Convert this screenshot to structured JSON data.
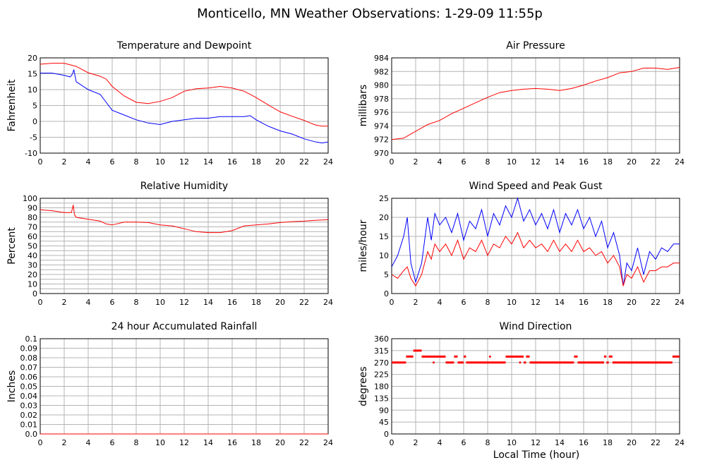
{
  "title": "Monticello, MN Weather Observations: 1-29-09 11:55p",
  "shared_xlabel": "Local Time (hour)",
  "colors": {
    "red": "#ff0000",
    "blue": "#0000ff",
    "grid": "#b4b4b4",
    "frame": "#000000"
  },
  "chart_data": [
    {
      "id": "temp",
      "type": "line",
      "title": "Temperature and Dewpoint",
      "xlabel": "",
      "ylabel": "Fahrenheit",
      "xlim": [
        0,
        24
      ],
      "ylim": [
        -10,
        20
      ],
      "xticks": [
        0,
        2,
        4,
        6,
        8,
        10,
        12,
        14,
        16,
        18,
        20,
        22,
        24
      ],
      "yticks": [
        -10,
        -5,
        0,
        5,
        10,
        15,
        20
      ],
      "grid": true,
      "series": [
        {
          "color": "#ff0000",
          "x": [
            0,
            1,
            2,
            2.5,
            3,
            4,
            5,
            5.5,
            6,
            7,
            8,
            9,
            10,
            11,
            12,
            13,
            14,
            15,
            16,
            17,
            18,
            19,
            20,
            21,
            22,
            22.5,
            23,
            23.5,
            24
          ],
          "y": [
            18,
            18.3,
            18.3,
            17.8,
            17.3,
            15.3,
            14.2,
            13.3,
            11,
            8,
            6,
            5.6,
            6.3,
            7.5,
            9.5,
            10.3,
            10.5,
            11,
            10.5,
            9.5,
            7.5,
            5.2,
            3,
            1.6,
            0.3,
            -0.5,
            -1.2,
            -1.5,
            -1.5
          ]
        },
        {
          "color": "#0000ff",
          "x": [
            0,
            1,
            2,
            2.5,
            2.7,
            2.8,
            3,
            4,
            5,
            5.5,
            6,
            7,
            8,
            9,
            10,
            11,
            12,
            13,
            14,
            15,
            16,
            17,
            17.5,
            18,
            19,
            20,
            21,
            22,
            23,
            23.5,
            24
          ],
          "y": [
            15.2,
            15.2,
            14.5,
            14,
            15,
            16.3,
            12.5,
            10,
            8.5,
            6,
            3.5,
            2,
            0.5,
            -0.5,
            -1,
            0,
            0.5,
            1,
            1,
            1.5,
            1.5,
            1.5,
            1.8,
            0.5,
            -1.5,
            -3,
            -4,
            -5.5,
            -6.5,
            -6.8,
            -6.5
          ]
        }
      ]
    },
    {
      "id": "pressure",
      "type": "line",
      "title": "Air Pressure",
      "xlabel": "",
      "ylabel": "millibars",
      "xlim": [
        0,
        24
      ],
      "ylim": [
        970,
        984
      ],
      "xticks": [
        0,
        2,
        4,
        6,
        8,
        10,
        12,
        14,
        16,
        18,
        20,
        22,
        24
      ],
      "yticks": [
        970,
        972,
        974,
        976,
        978,
        980,
        982,
        984
      ],
      "grid": true,
      "series": [
        {
          "color": "#ff0000",
          "x": [
            0,
            1,
            2,
            3,
            4,
            5,
            6,
            7,
            8,
            9,
            10,
            11,
            12,
            13,
            14,
            15,
            16,
            17,
            18,
            19,
            20,
            21,
            22,
            23,
            24
          ],
          "y": [
            972,
            972.2,
            973.2,
            974.2,
            974.8,
            975.8,
            976.6,
            977.4,
            978.2,
            978.9,
            979.2,
            979.4,
            979.5,
            979.4,
            979.2,
            979.5,
            980,
            980.6,
            981.1,
            981.8,
            982,
            982.5,
            982.5,
            982.3,
            982.6
          ]
        }
      ]
    },
    {
      "id": "humidity",
      "type": "line",
      "title": "Relative Humidity",
      "xlabel": "",
      "ylabel": "Percent",
      "xlim": [
        0,
        24
      ],
      "ylim": [
        0,
        100
      ],
      "xticks": [
        0,
        2,
        4,
        6,
        8,
        10,
        12,
        14,
        16,
        18,
        20,
        22,
        24
      ],
      "yticks": [
        0,
        5,
        10,
        15,
        20,
        25,
        30,
        35,
        40,
        45,
        50,
        55,
        60,
        65,
        70,
        75,
        80,
        85,
        90,
        95,
        100
      ],
      "ytick_labels": [
        "0",
        "10",
        "20",
        "30",
        "40",
        "50",
        "60",
        "70",
        "80",
        "90",
        "100"
      ],
      "grid": true,
      "series": [
        {
          "color": "#ff0000",
          "x": [
            0,
            1,
            2,
            2.6,
            2.75,
            2.85,
            3,
            4,
            5,
            5.5,
            6,
            7,
            8,
            9,
            10,
            11,
            12,
            13,
            14,
            15,
            16,
            17,
            18,
            19,
            20,
            21,
            22,
            23,
            24
          ],
          "y": [
            88,
            87,
            85,
            85,
            93,
            83,
            80,
            78,
            76,
            73,
            72,
            75,
            75,
            74.5,
            72,
            71,
            68,
            65,
            64,
            64,
            66,
            71,
            72,
            73,
            74.5,
            75.5,
            76,
            77,
            77.5
          ]
        }
      ]
    },
    {
      "id": "wind",
      "type": "line",
      "title": "Wind Speed and Peak Gust",
      "xlabel": "",
      "ylabel": "miles/hour",
      "xlim": [
        0,
        24
      ],
      "ylim": [
        0,
        25
      ],
      "xticks": [
        0,
        2,
        4,
        6,
        8,
        10,
        12,
        14,
        16,
        18,
        20,
        22,
        24
      ],
      "yticks": [
        0,
        5,
        10,
        15,
        20,
        25
      ],
      "grid": true,
      "series": [
        {
          "color": "#0000ff",
          "x": [
            0,
            0.5,
            1,
            1.3,
            1.6,
            2,
            2.5,
            3,
            3.3,
            3.6,
            4,
            4.5,
            5,
            5.5,
            6,
            6.5,
            7,
            7.5,
            8,
            8.5,
            9,
            9.5,
            10,
            10.5,
            11,
            11.5,
            12,
            12.5,
            13,
            13.5,
            14,
            14.5,
            15,
            15.5,
            16,
            16.5,
            17,
            17.5,
            18,
            18.5,
            19,
            19.3,
            19.6,
            20,
            20.5,
            21,
            21.5,
            22,
            22.5,
            23,
            23.5,
            24
          ],
          "y": [
            7,
            10,
            15,
            20,
            8,
            3,
            8,
            20,
            14,
            21,
            18,
            20,
            16,
            21,
            14,
            19,
            17,
            22,
            15,
            21,
            18,
            23,
            20,
            25,
            19,
            22,
            18,
            21,
            17,
            22,
            16,
            21,
            18,
            22,
            17,
            20,
            15,
            19,
            12,
            16,
            10,
            2,
            8,
            6,
            12,
            5,
            11,
            9,
            12,
            11,
            13,
            13
          ]
        },
        {
          "color": "#ff0000",
          "x": [
            0,
            0.5,
            1,
            1.3,
            1.6,
            2,
            2.5,
            3,
            3.3,
            3.6,
            4,
            4.5,
            5,
            5.5,
            6,
            6.5,
            7,
            7.5,
            8,
            8.5,
            9,
            9.5,
            10,
            10.5,
            11,
            11.5,
            12,
            12.5,
            13,
            13.5,
            14,
            14.5,
            15,
            15.5,
            16,
            16.5,
            17,
            17.5,
            18,
            18.5,
            19,
            19.3,
            19.6,
            20,
            20.5,
            21,
            21.5,
            22,
            22.5,
            23,
            23.5,
            24
          ],
          "y": [
            5,
            4,
            6,
            7,
            4,
            2,
            5,
            11,
            9,
            13,
            11,
            13,
            10,
            14,
            9,
            12,
            11,
            14,
            10,
            13,
            12,
            15,
            13,
            16,
            12,
            14,
            12,
            13,
            11,
            14,
            11,
            13,
            11,
            14,
            11,
            12,
            10,
            11,
            8,
            10,
            7,
            2,
            5,
            4,
            7,
            3,
            6,
            6,
            7,
            7,
            8,
            8
          ]
        }
      ]
    },
    {
      "id": "rain",
      "type": "line",
      "title": "24 hour Accumulated Rainfall",
      "xlabel": "",
      "ylabel": "Inches",
      "xlim": [
        0,
        24
      ],
      "ylim": [
        0,
        0.1
      ],
      "xticks": [
        0,
        2,
        4,
        6,
        8,
        10,
        12,
        14,
        16,
        18,
        20,
        22,
        24
      ],
      "yticks": [
        0,
        0.01,
        0.02,
        0.03,
        0.04,
        0.05,
        0.06,
        0.07,
        0.08,
        0.09,
        0.1
      ],
      "ytick_labels": [
        "0.0",
        "0.01",
        "0.02",
        "0.03",
        "0.04",
        "0.05",
        "0.06",
        "0.07",
        "0.08",
        "0.09",
        "0.1"
      ],
      "grid": true,
      "series": [
        {
          "color": "#ff0000",
          "x": [
            0,
            24
          ],
          "y": [
            0,
            0
          ]
        }
      ]
    },
    {
      "id": "direction",
      "type": "scatter",
      "title": "Wind Direction",
      "xlabel": "Local Time (hour)",
      "ylabel": "degrees",
      "xlim": [
        0,
        24
      ],
      "ylim": [
        0,
        360
      ],
      "xticks": [
        0,
        2,
        4,
        6,
        8,
        10,
        12,
        14,
        16,
        18,
        20,
        22,
        24
      ],
      "yticks": [
        0,
        45,
        90,
        135,
        180,
        225,
        270,
        315,
        360
      ],
      "grid": true,
      "segments": [
        {
          "color": "#ff0000",
          "y": 270,
          "x0": 0,
          "x1": 1.2
        },
        {
          "color": "#ff0000",
          "y": 292.5,
          "x0": 1.2,
          "x1": 1.8
        },
        {
          "color": "#ff0000",
          "y": 315,
          "x0": 1.8,
          "x1": 2.5
        },
        {
          "color": "#ff0000",
          "y": 292.5,
          "x0": 2.5,
          "x1": 4.5
        },
        {
          "color": "#ff0000",
          "y": 270,
          "x0": 4.5,
          "x1": 5.2
        },
        {
          "color": "#ff0000",
          "y": 292.5,
          "x0": 5.2,
          "x1": 5.5
        },
        {
          "color": "#ff0000",
          "y": 270,
          "x0": 5.5,
          "x1": 6
        },
        {
          "color": "#ff0000",
          "y": 292.5,
          "x0": 6,
          "x1": 6.2
        },
        {
          "color": "#ff0000",
          "y": 270,
          "x0": 6.2,
          "x1": 9.5
        },
        {
          "color": "#ff0000",
          "y": 292.5,
          "x0": 9.5,
          "x1": 11
        },
        {
          "color": "#ff0000",
          "y": 270,
          "x0": 11,
          "x1": 11.2
        },
        {
          "color": "#ff0000",
          "y": 292.5,
          "x0": 11.2,
          "x1": 11.5
        },
        {
          "color": "#ff0000",
          "y": 270,
          "x0": 11.5,
          "x1": 15.2
        },
        {
          "color": "#ff0000",
          "y": 292.5,
          "x0": 15.2,
          "x1": 15.5
        },
        {
          "color": "#ff0000",
          "y": 270,
          "x0": 15.5,
          "x1": 17.7
        },
        {
          "color": "#ff0000",
          "y": 292.5,
          "x0": 17.7,
          "x1": 17.9
        },
        {
          "color": "#ff0000",
          "y": 270,
          "x0": 17.9,
          "x1": 18.1
        },
        {
          "color": "#ff0000",
          "y": 292.5,
          "x0": 18.1,
          "x1": 18.4
        },
        {
          "color": "#ff0000",
          "y": 270,
          "x0": 18.4,
          "x1": 23.4
        },
        {
          "color": "#ff0000",
          "y": 292.5,
          "x0": 23.4,
          "x1": 24
        }
      ],
      "points": [
        {
          "x": 3.5,
          "y": 270
        },
        {
          "x": 8.2,
          "y": 292.5
        },
        {
          "x": 10.7,
          "y": 270
        }
      ]
    }
  ]
}
